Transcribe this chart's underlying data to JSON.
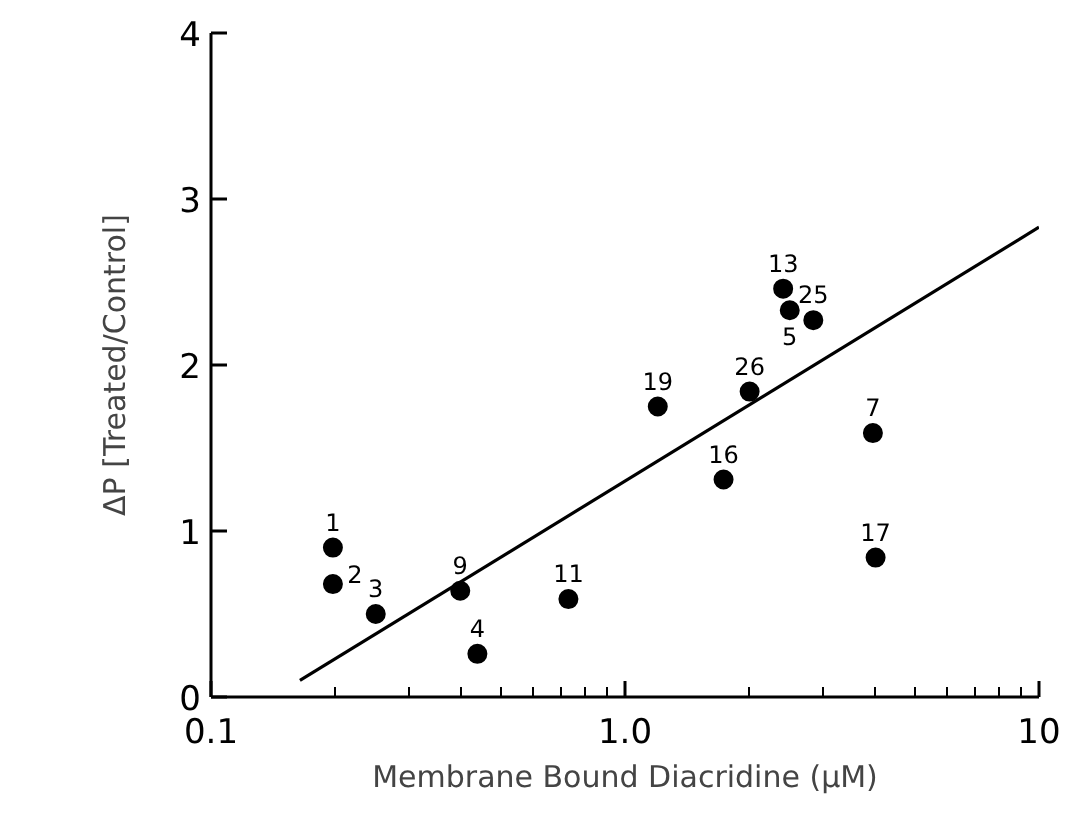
{
  "chart_data": {
    "type": "scatter",
    "xlabel": "Membrane Bound Diacridine (μM)",
    "ylabel": "ΔP [Treated/Control]",
    "log": "x",
    "xlim": [
      0.1,
      10
    ],
    "ylim": [
      0,
      4
    ],
    "xticks": [
      0.1,
      {
        "value": 1,
        "label": "1.0"
      },
      10
    ],
    "yticks": [
      0,
      1,
      2,
      3,
      4
    ],
    "grid": false,
    "series": [
      {
        "color": "#000000",
        "marker": "circle",
        "x": [
          0.197,
          0.197,
          0.25,
          0.4,
          0.44,
          0.73,
          1.2,
          1.73,
          2.0,
          2.41,
          2.5,
          2.85,
          3.97,
          4.03
        ],
        "values": [
          0.9,
          0.68,
          0.5,
          0.64,
          0.26,
          0.59,
          1.75,
          1.31,
          1.84,
          2.46,
          2.33,
          2.27,
          1.59,
          0.84
        ]
      },
      {
        "type": "line",
        "color": "#000000",
        "x": [
          0.164,
          10
        ],
        "values": [
          0.1,
          2.83
        ]
      }
    ],
    "annotations": [
      {
        "text": "1",
        "x": 0.197,
        "y": 0.9
      },
      {
        "text": "2",
        "x": 0.197,
        "y": 0.68
      },
      {
        "text": "3",
        "x": 0.25,
        "y": 0.5
      },
      {
        "text": "9",
        "x": 0.4,
        "y": 0.64
      },
      {
        "text": "4",
        "x": 0.44,
        "y": 0.26
      },
      {
        "text": "11",
        "x": 0.73,
        "y": 0.59
      },
      {
        "text": "19",
        "x": 1.2,
        "y": 1.75
      },
      {
        "text": "16",
        "x": 1.73,
        "y": 1.31
      },
      {
        "text": "26",
        "x": 2.0,
        "y": 1.84
      },
      {
        "text": "13",
        "x": 2.41,
        "y": 2.46
      },
      {
        "text": "5",
        "x": 2.5,
        "y": 2.33
      },
      {
        "text": "25",
        "x": 2.85,
        "y": 2.27
      },
      {
        "text": "7",
        "x": 3.97,
        "y": 1.59
      },
      {
        "text": "17",
        "x": 4.03,
        "y": 0.84
      }
    ]
  }
}
